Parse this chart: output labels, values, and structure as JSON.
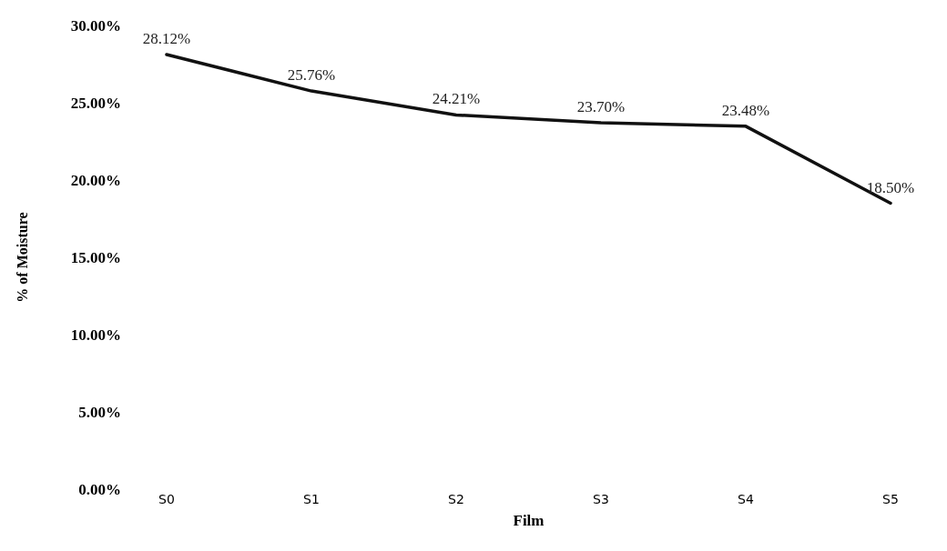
{
  "chart_data": {
    "type": "line",
    "xlabel": "Film",
    "ylabel": "% of Moisture",
    "categories": [
      "S0",
      "S1",
      "S2",
      "S3",
      "S4",
      "S5"
    ],
    "series": [
      {
        "color": "#111111",
        "values": [
          28.12,
          25.76,
          24.21,
          23.7,
          23.48,
          18.5
        ],
        "value_labels": [
          "28.12%",
          "25.76%",
          "24.21%",
          "23.70%",
          "23.48%",
          "18.50%"
        ]
      }
    ],
    "ylim": [
      0,
      30
    ],
    "yticks": [
      {
        "value": 0,
        "label": "0.00%"
      },
      {
        "value": 5,
        "label": "5.00%"
      },
      {
        "value": 10,
        "label": "10.00%"
      },
      {
        "value": 15,
        "label": "15.00%"
      },
      {
        "value": 20,
        "label": "20.00%"
      },
      {
        "value": 25,
        "label": "25.00%"
      },
      {
        "value": 30,
        "label": "30.00%"
      }
    ],
    "grid": false,
    "marker": "none",
    "line_style": "solid"
  }
}
